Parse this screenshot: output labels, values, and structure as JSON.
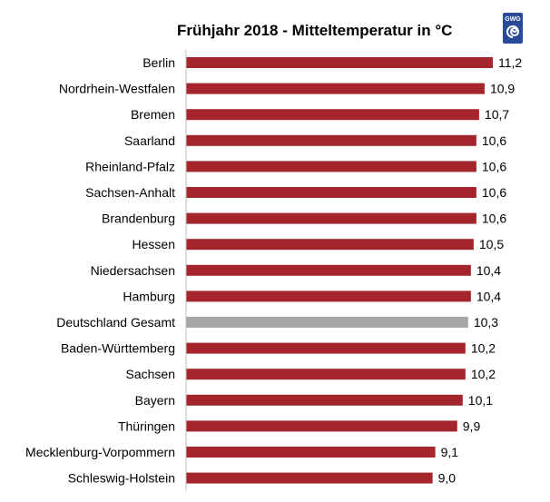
{
  "chart_data": {
    "type": "bar",
    "orientation": "horizontal",
    "title": "Frühjahr 2018 - Mitteltemperatur in °C",
    "categories": [
      "Berlin",
      "Nordrhein-Westfalen",
      "Bremen",
      "Saarland",
      "Rheinland-Pfalz",
      "Sachsen-Anhalt",
      "Brandenburg",
      "Hessen",
      "Niedersachsen",
      "Hamburg",
      "Deutschland Gesamt",
      "Baden-Württemberg",
      "Sachsen",
      "Bayern",
      "Thüringen",
      "Mecklenburg-Vorpommern",
      "Schleswig-Holstein"
    ],
    "values": [
      11.2,
      10.9,
      10.7,
      10.6,
      10.6,
      10.6,
      10.6,
      10.5,
      10.4,
      10.4,
      10.3,
      10.2,
      10.2,
      10.1,
      9.9,
      9.1,
      9.0
    ],
    "value_labels": [
      "11,2",
      "10,9",
      "10,7",
      "10,6",
      "10,6",
      "10,6",
      "10,6",
      "10,5",
      "10,4",
      "10,4",
      "10,3",
      "10,2",
      "10,2",
      "10,1",
      "9,9",
      "9,1",
      "9,0"
    ],
    "highlight_category": "Deutschland Gesamt",
    "xlim": [
      0,
      11.2
    ],
    "xlabel": "",
    "ylabel": "",
    "grid": false,
    "colors": {
      "bar": "#a4262c",
      "highlight": "#a6a6a6"
    }
  },
  "logo": {
    "text": "GWG",
    "color": "#2a4a9a"
  }
}
